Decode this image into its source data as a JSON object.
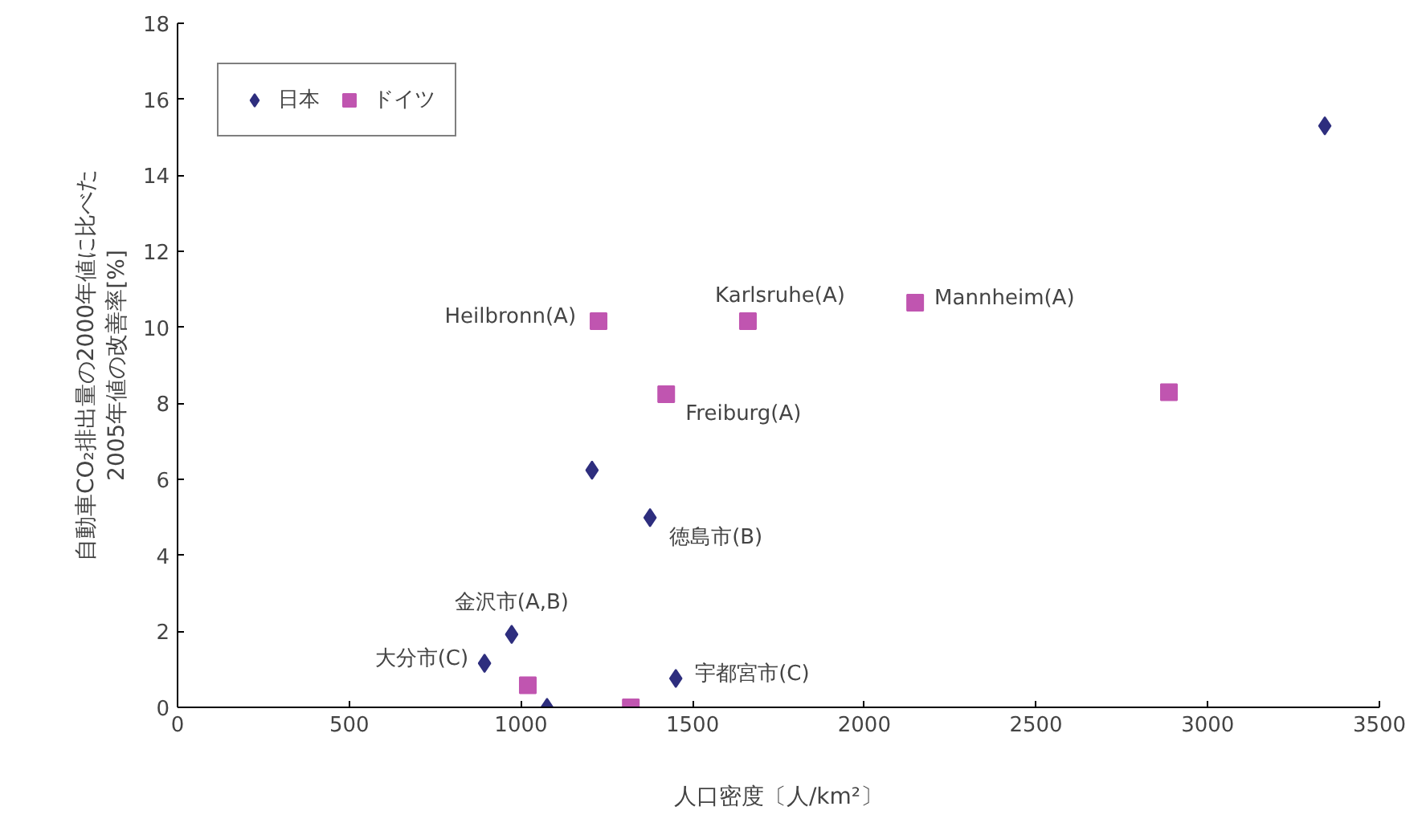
{
  "chart_data": {
    "type": "scatter",
    "xlabel": "人口密度〔人/km²〕",
    "ylabel": "自動車CO₂排出量の2000年値に比べた\n2005年値の改善率[%]",
    "xlim": [
      0,
      3500
    ],
    "xticks": [
      0,
      500,
      1000,
      1500,
      2000,
      2500,
      3000,
      3500
    ],
    "ylim": [
      0,
      18
    ],
    "yticks": [
      0,
      2,
      4,
      6,
      8,
      10,
      12,
      14,
      16,
      18
    ],
    "grid": false,
    "legend": "top left",
    "series": [
      {
        "name": "日本",
        "color": "#2e2e7e",
        "marker": "diamond",
        "x": [
          3341,
          1207,
          1376,
          973,
          894,
          1076,
          1451
        ],
        "values": [
          15.3,
          6.24,
          4.99,
          1.92,
          1.16,
          0,
          0.76
        ]
      },
      {
        "name": "ドイツ",
        "color": "#c055b0",
        "marker": "square",
        "x": [
          1226,
          1661,
          2148,
          1423,
          2887,
          1020,
          1320
        ],
        "values": [
          10.16,
          10.16,
          10.65,
          8.24,
          8.29,
          0.58,
          0
        ]
      }
    ],
    "annotations": [
      {
        "text": "Heilbronn(A)",
        "x": 1226,
        "y": 10.16
      },
      {
        "text": "Karlsruhe(A)",
        "x": 1661,
        "y": 10.16
      },
      {
        "text": "Mannheim(A)",
        "x": 2148,
        "y": 10.65
      },
      {
        "text": "Freiburg(A)",
        "x": 1423,
        "y": 8.24
      },
      {
        "text": "徳島市(B)",
        "x": 1376,
        "y": 4.99
      },
      {
        "text": "金沢市(A,B)",
        "x": 973,
        "y": 1.92
      },
      {
        "text": "大分市(C)",
        "x": 894,
        "y": 1.16
      },
      {
        "text": "宇都宮市(C)",
        "x": 1451,
        "y": 0.76
      }
    ]
  }
}
